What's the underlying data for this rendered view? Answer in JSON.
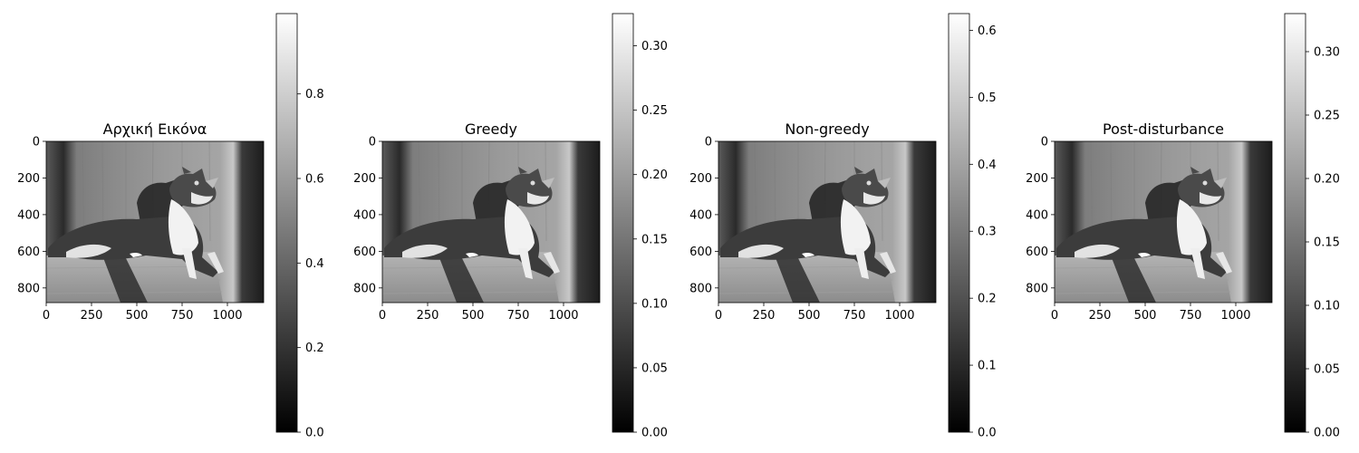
{
  "chart_data": [
    {
      "type": "heatmap",
      "title": "Αρχική Εικόνα",
      "colormap": "gray",
      "image_extent": {
        "x": [
          0,
          1200
        ],
        "y": [
          880,
          0
        ]
      },
      "xticks": [
        0,
        250,
        500,
        750,
        1000
      ],
      "xtick_labels": [
        "0",
        "250",
        "500",
        "750",
        "1000"
      ],
      "yticks": [
        0,
        200,
        400,
        600,
        800
      ],
      "ytick_labels": [
        "0",
        "200",
        "400",
        "600",
        "800"
      ],
      "colorbar": {
        "range": [
          0,
          0.99
        ],
        "ticks": [
          0,
          0.2,
          0.4,
          0.6,
          0.8
        ],
        "tick_labels": [
          "0.0",
          "0.2",
          "0.4",
          "0.6",
          "0.8"
        ]
      }
    },
    {
      "type": "heatmap",
      "title": "Greedy",
      "colormap": "gray",
      "image_extent": {
        "x": [
          0,
          1200
        ],
        "y": [
          880,
          0
        ]
      },
      "xticks": [
        0,
        250,
        500,
        750,
        1000
      ],
      "xtick_labels": [
        "0",
        "250",
        "500",
        "750",
        "1000"
      ],
      "yticks": [
        0,
        200,
        400,
        600,
        800
      ],
      "ytick_labels": [
        "0",
        "200",
        "400",
        "600",
        "800"
      ],
      "colorbar": {
        "range": [
          0,
          0.325
        ],
        "ticks": [
          0,
          0.05,
          0.1,
          0.15,
          0.2,
          0.25,
          0.3
        ],
        "tick_labels": [
          "0.00",
          "0.05",
          "0.10",
          "0.15",
          "0.20",
          "0.25",
          "0.30"
        ]
      }
    },
    {
      "type": "heatmap",
      "title": "Non-greedy",
      "colormap": "gray",
      "image_extent": {
        "x": [
          0,
          1200
        ],
        "y": [
          880,
          0
        ]
      },
      "xticks": [
        0,
        250,
        500,
        750,
        1000
      ],
      "xtick_labels": [
        "0",
        "250",
        "500",
        "750",
        "1000"
      ],
      "yticks": [
        0,
        200,
        400,
        600,
        800
      ],
      "ytick_labels": [
        "0",
        "200",
        "400",
        "600",
        "800"
      ],
      "colorbar": {
        "range": [
          0,
          0.625
        ],
        "ticks": [
          0,
          0.1,
          0.2,
          0.3,
          0.4,
          0.5,
          0.6
        ],
        "tick_labels": [
          "0.0",
          "0.1",
          "0.2",
          "0.3",
          "0.4",
          "0.5",
          "0.6"
        ]
      }
    },
    {
      "type": "heatmap",
      "title": "Post-disturbance",
      "colormap": "gray",
      "image_extent": {
        "x": [
          0,
          1200
        ],
        "y": [
          880,
          0
        ]
      },
      "xticks": [
        0,
        250,
        500,
        750,
        1000
      ],
      "xtick_labels": [
        "0",
        "250",
        "500",
        "750",
        "1000"
      ],
      "yticks": [
        0,
        200,
        400,
        600,
        800
      ],
      "ytick_labels": [
        "0",
        "200",
        "400",
        "600",
        "800"
      ],
      "colorbar": {
        "range": [
          0,
          0.33
        ],
        "ticks": [
          0,
          0.05,
          0.1,
          0.15,
          0.2,
          0.25,
          0.3
        ],
        "tick_labels": [
          "0.00",
          "0.05",
          "0.10",
          "0.15",
          "0.20",
          "0.25",
          "0.30"
        ]
      }
    }
  ]
}
